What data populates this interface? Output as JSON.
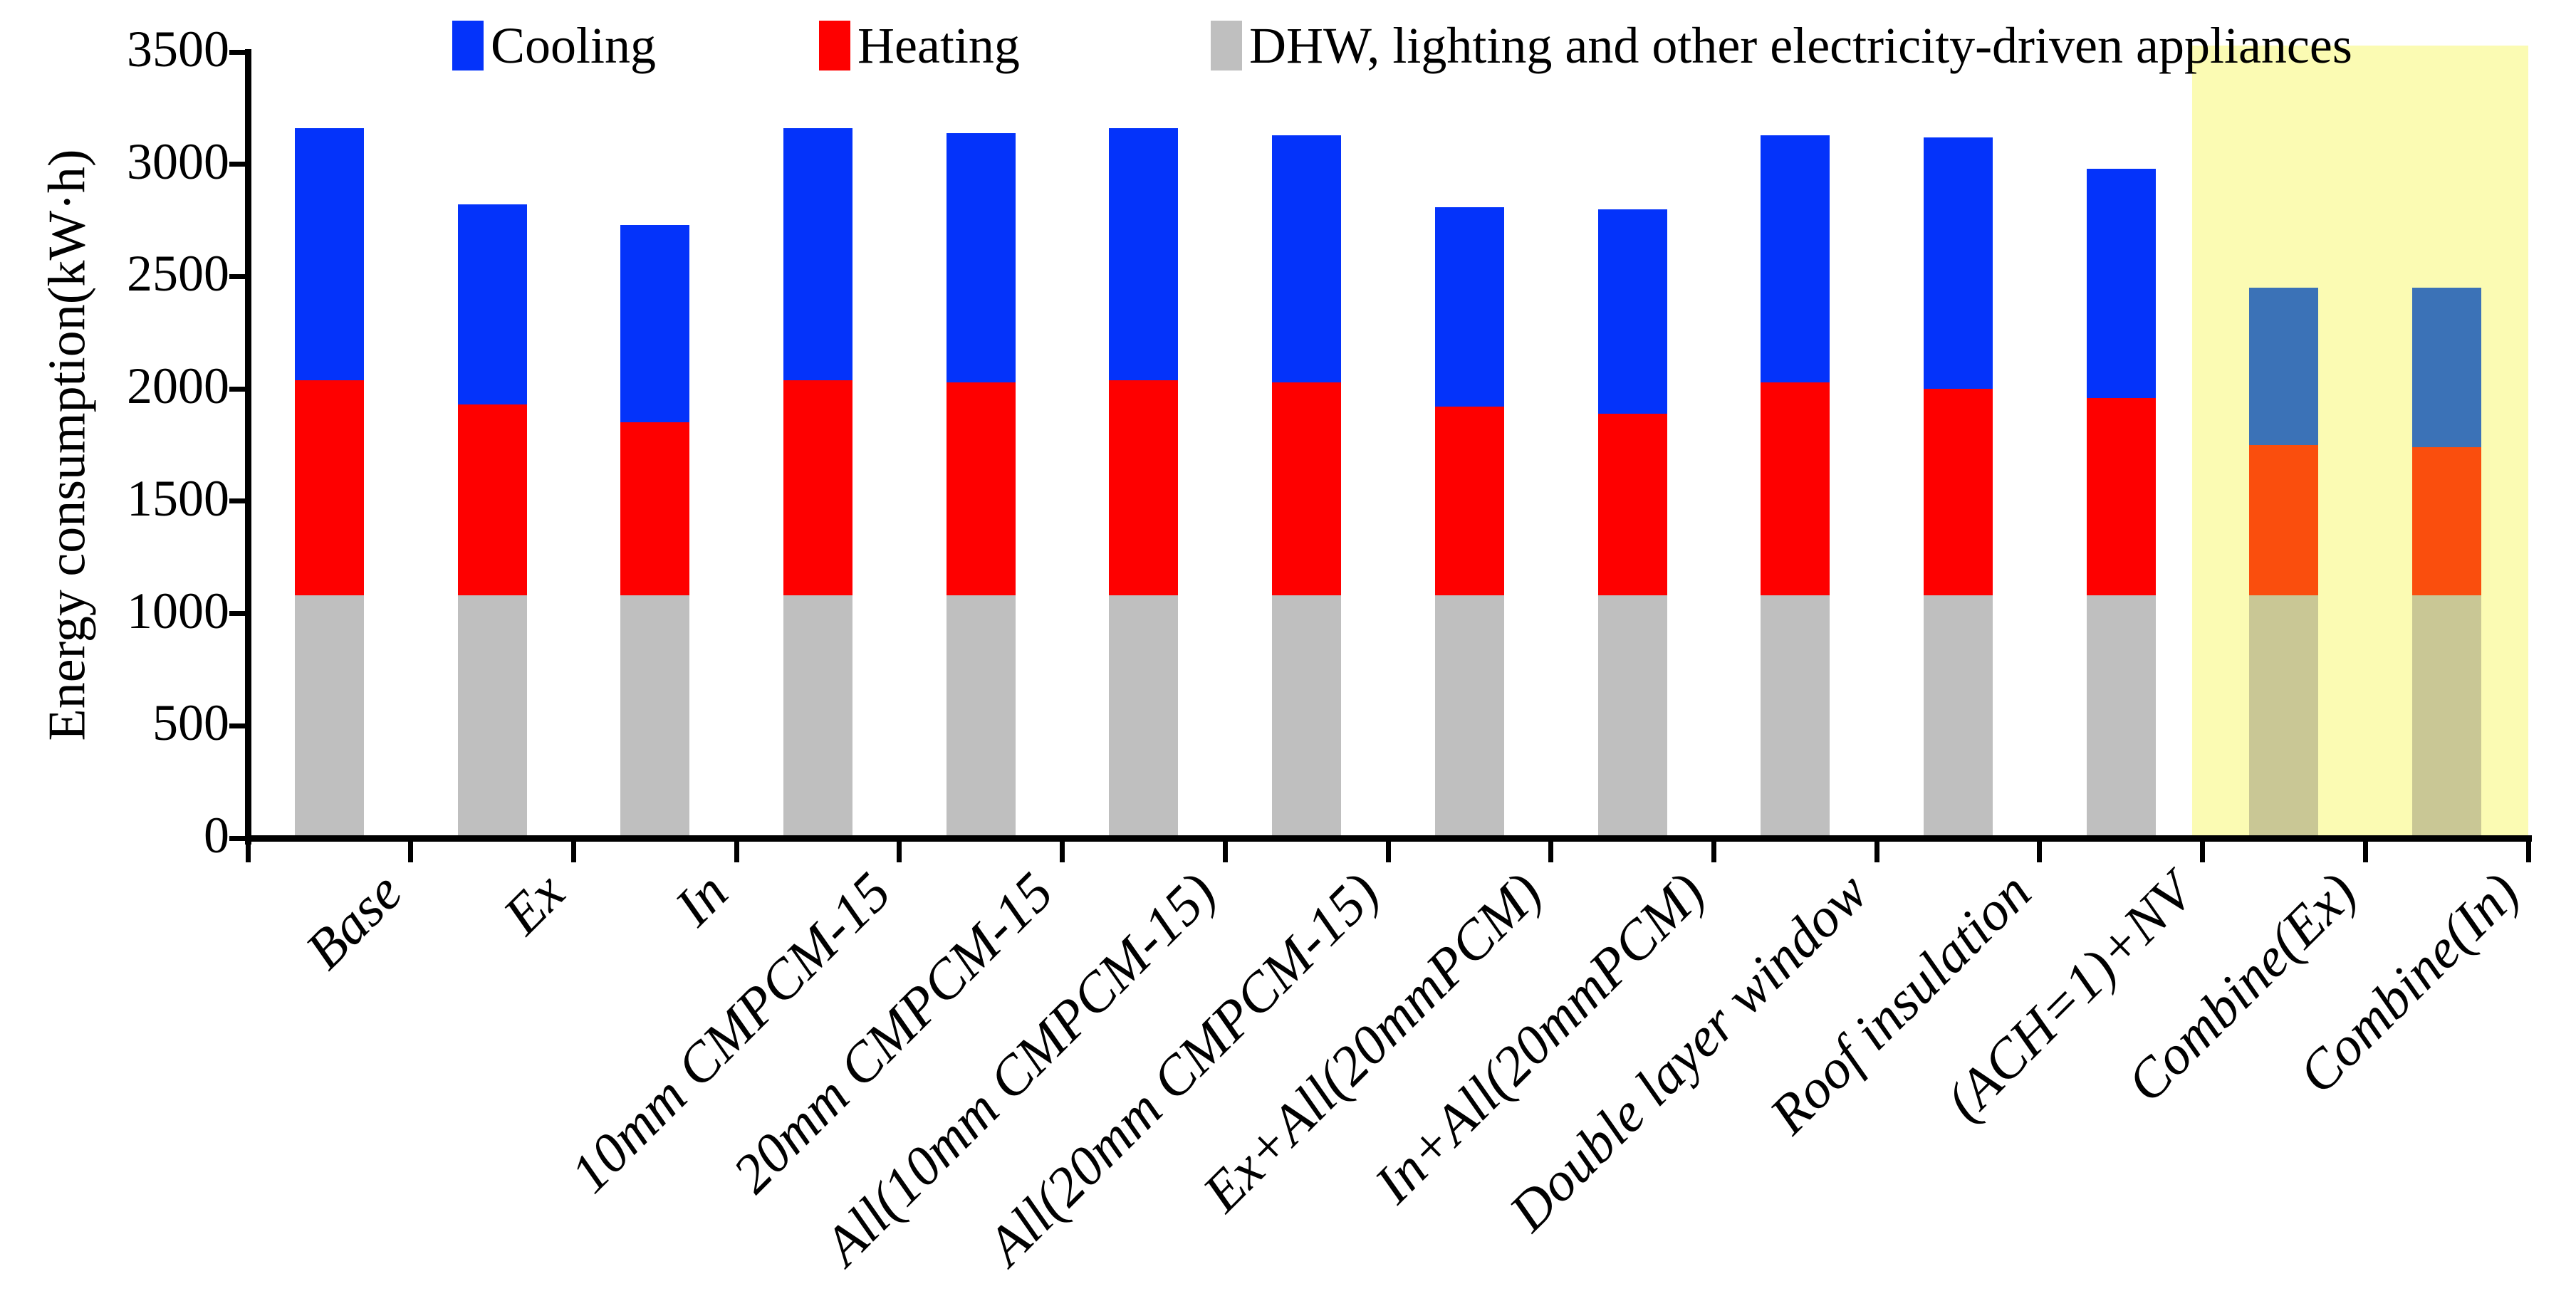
{
  "chart_data": {
    "type": "stacked-bar",
    "title": "",
    "xlabel": "",
    "ylabel": "Energy consumption(kW·h)",
    "ylim": [
      0,
      3500
    ],
    "yticks": [
      0,
      500,
      1000,
      1500,
      2000,
      2500,
      3000,
      3500
    ],
    "grid": false,
    "legend_position": "top",
    "categories": [
      "Base",
      "Ex",
      "In",
      "10mm CMPCM-15",
      "20mm CMPCM-15",
      "All(10mm CMPCM-15)",
      "All(20mm CMPCM-15)",
      "Ex+All(20mmPCM)",
      "In+All(20mmPCM)",
      "Double layer window",
      "Roof insulation",
      "(ACH=1)+NV",
      "Combine(Ex)",
      "Combine(In)"
    ],
    "stack_order_bottom_to_top": [
      "DHW, lighting and other electricity-driven appliances",
      "Heating",
      "Cooling"
    ],
    "series": [
      {
        "name": "DHW, lighting and other electricity-driven appliances",
        "color": "#BFBFBF",
        "highlight_color": "#C9C795",
        "values": [
          1080,
          1080,
          1080,
          1080,
          1080,
          1080,
          1080,
          1080,
          1080,
          1080,
          1080,
          1080,
          1080,
          1080
        ]
      },
      {
        "name": "Heating",
        "color": "#FE0000",
        "highlight_color": "#FA4E0D",
        "values": [
          960,
          850,
          770,
          960,
          950,
          960,
          950,
          840,
          810,
          950,
          920,
          880,
          670,
          660
        ]
      },
      {
        "name": "Cooling",
        "color": "#0433FA",
        "highlight_color": "#3B72B7",
        "values": [
          1120,
          890,
          880,
          1120,
          1110,
          1120,
          1100,
          890,
          910,
          1100,
          1120,
          1020,
          700,
          710
        ]
      }
    ],
    "highlight_region": {
      "categories": [
        "Combine(Ex)",
        "Combine(In)"
      ],
      "start_index": 12,
      "background": "#FBFBB3"
    }
  },
  "legend": {
    "items": [
      {
        "key": "cooling",
        "label": "Cooling",
        "color": "#0433FA"
      },
      {
        "key": "heating",
        "label": "Heating",
        "color": "#FE0000"
      },
      {
        "key": "dhw",
        "label": "DHW, lighting and other electricity-driven appliances",
        "color": "#BFBFBF"
      }
    ]
  }
}
